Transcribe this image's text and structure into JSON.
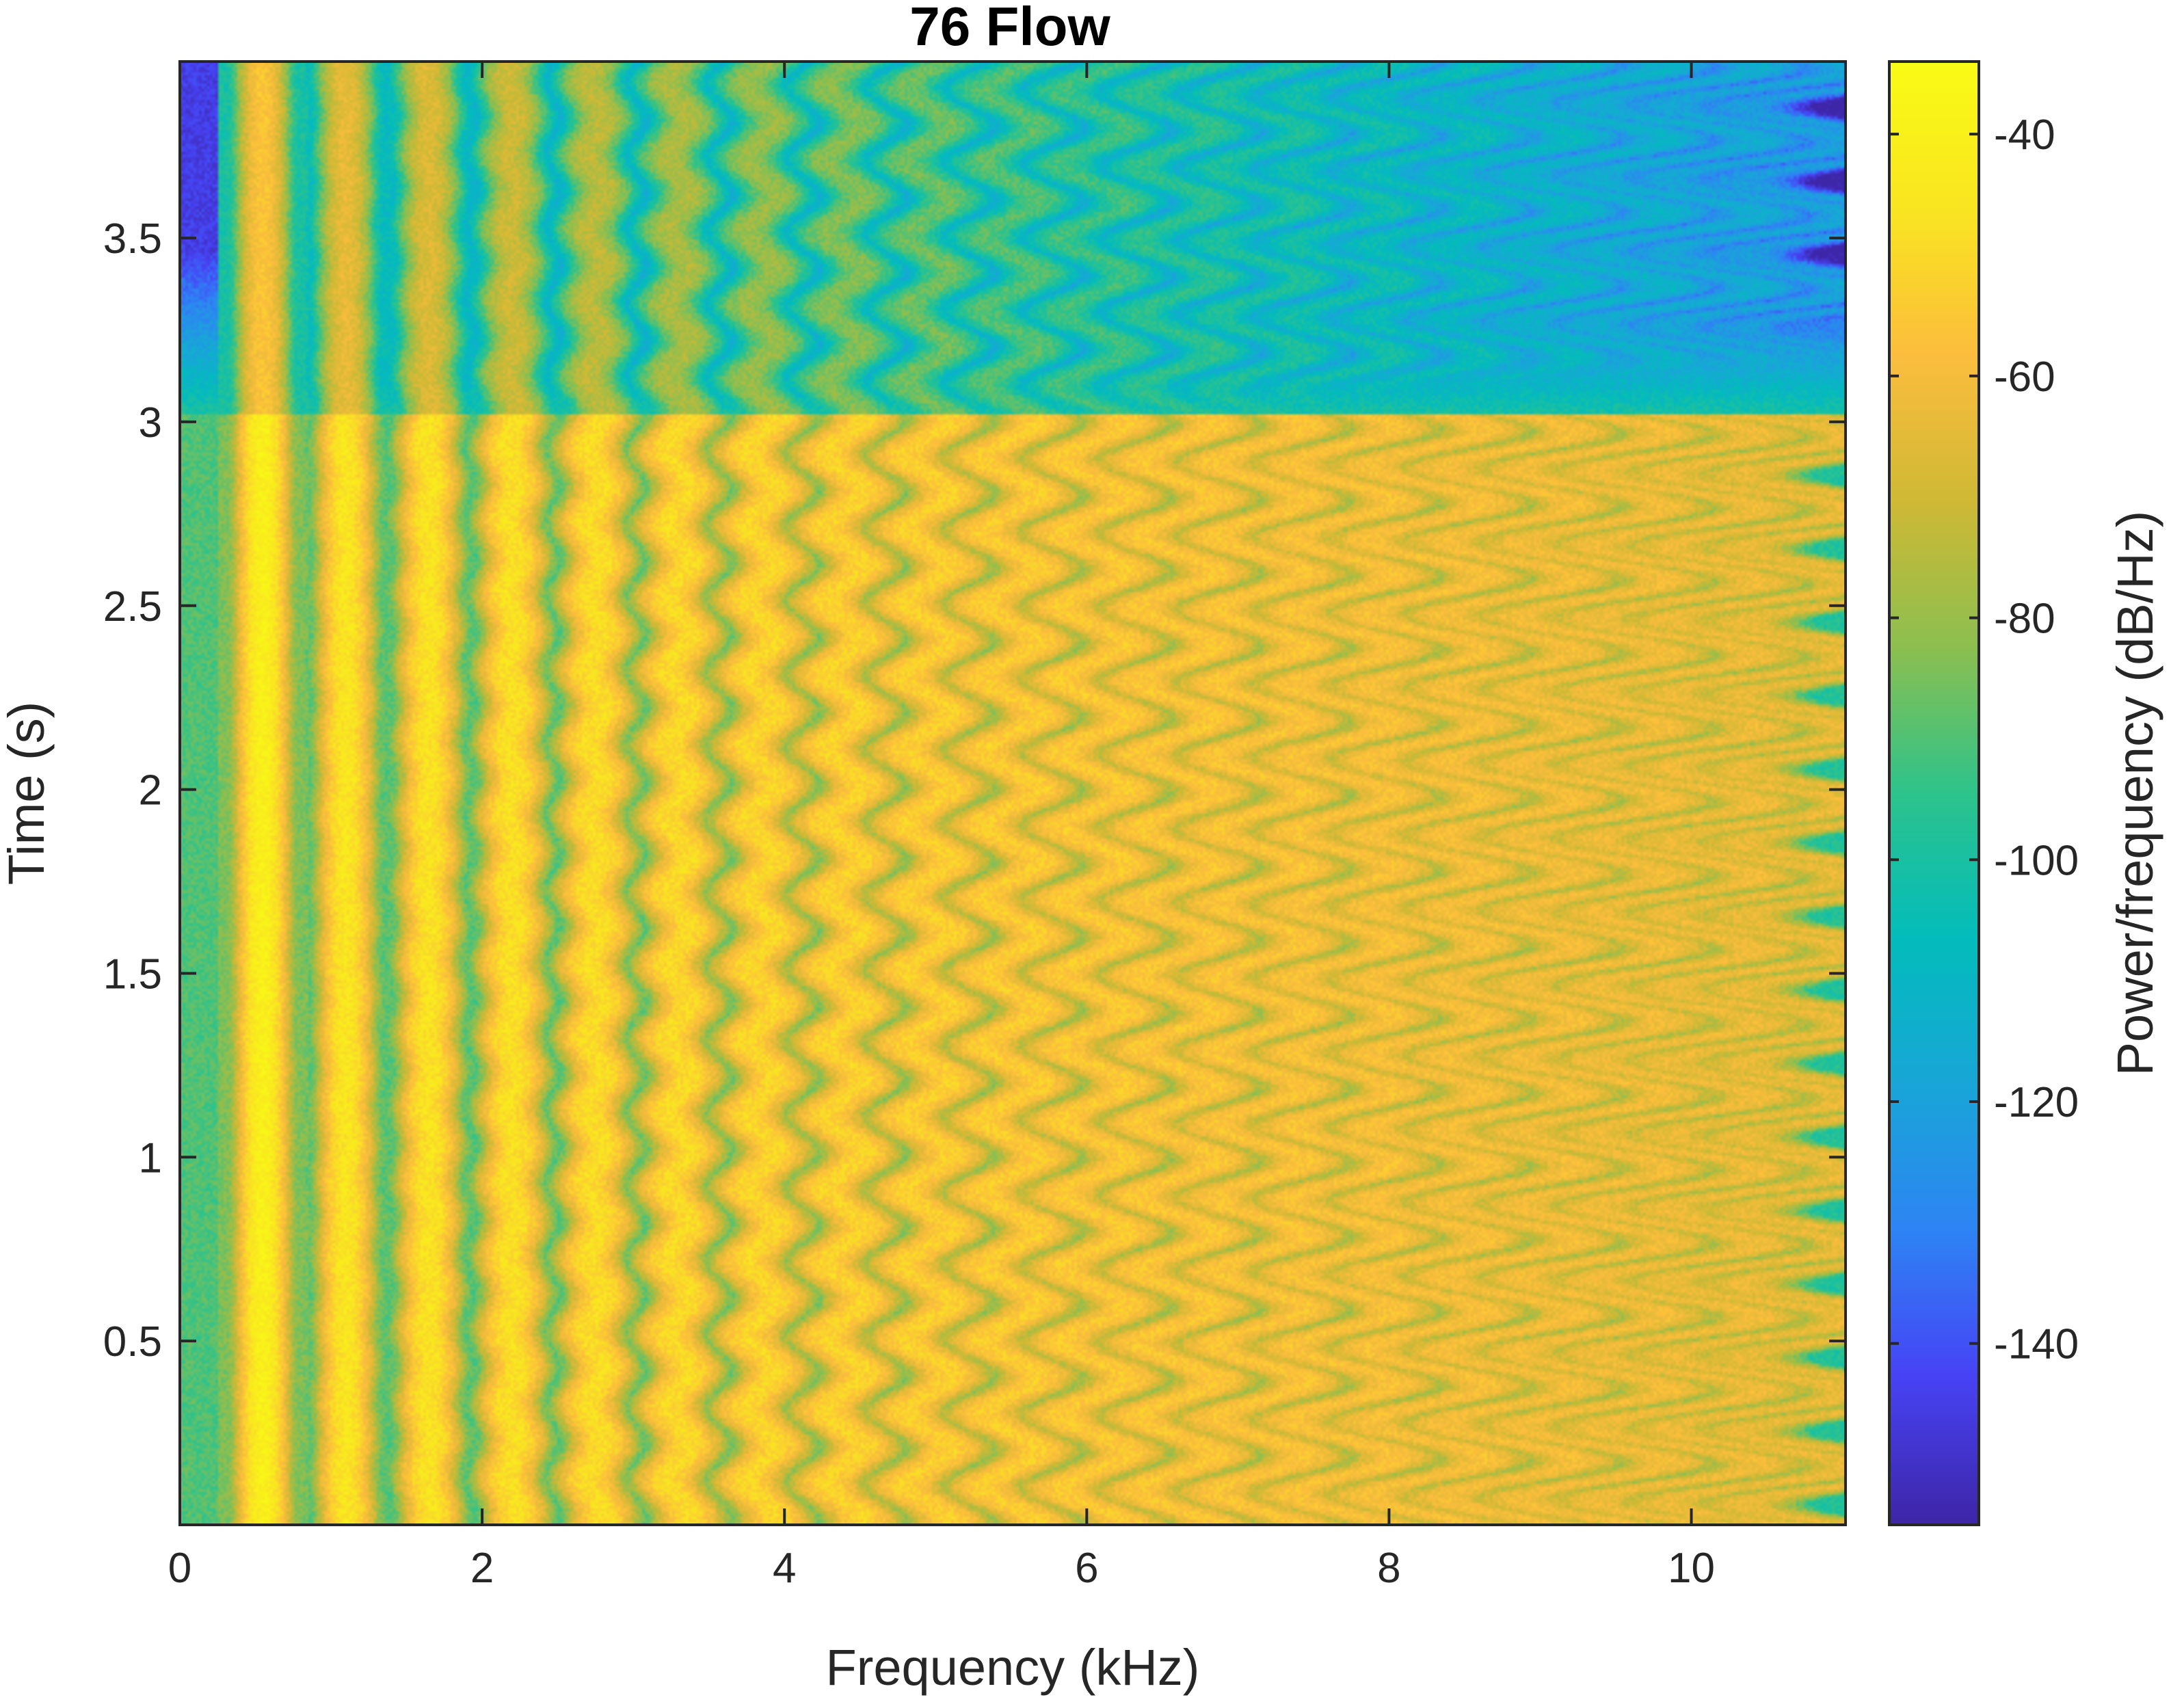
{
  "chart_data": {
    "type": "heatmap",
    "title": "76 Flow",
    "xlabel": "Frequency (kHz)",
    "ylabel": "Time (s)",
    "colorbar_label": "Power/frequency (dB/Hz)",
    "xlim": [
      0,
      11.02
    ],
    "ylim": [
      0,
      3.98
    ],
    "clim": [
      -155,
      -34
    ],
    "x_ticks": [
      0,
      2,
      4,
      6,
      8,
      10
    ],
    "y_ticks": [
      0.5,
      1,
      1.5,
      2,
      2.5,
      3,
      3.5
    ],
    "colorbar_ticks": [
      -40,
      -60,
      -80,
      -100,
      -120,
      -140
    ],
    "colormap": "parula",
    "colormap_stops": [
      "#3e26a8",
      "#4743f5",
      "#2e84f4",
      "#19a6d8",
      "#03bcbc",
      "#2dc38c",
      "#8cbf50",
      "#cfb935",
      "#fcbd3d",
      "#f9e521",
      "#f9fb15"
    ],
    "fundamental_frequency_khz": 0.55,
    "harmonics_visible": 20,
    "transition_time_s": 3.02,
    "vibrato_rate_hz": 5,
    "noise_floor_db_before": -90,
    "noise_floor_db_after": -140,
    "harmonic_peak_db": -40
  }
}
